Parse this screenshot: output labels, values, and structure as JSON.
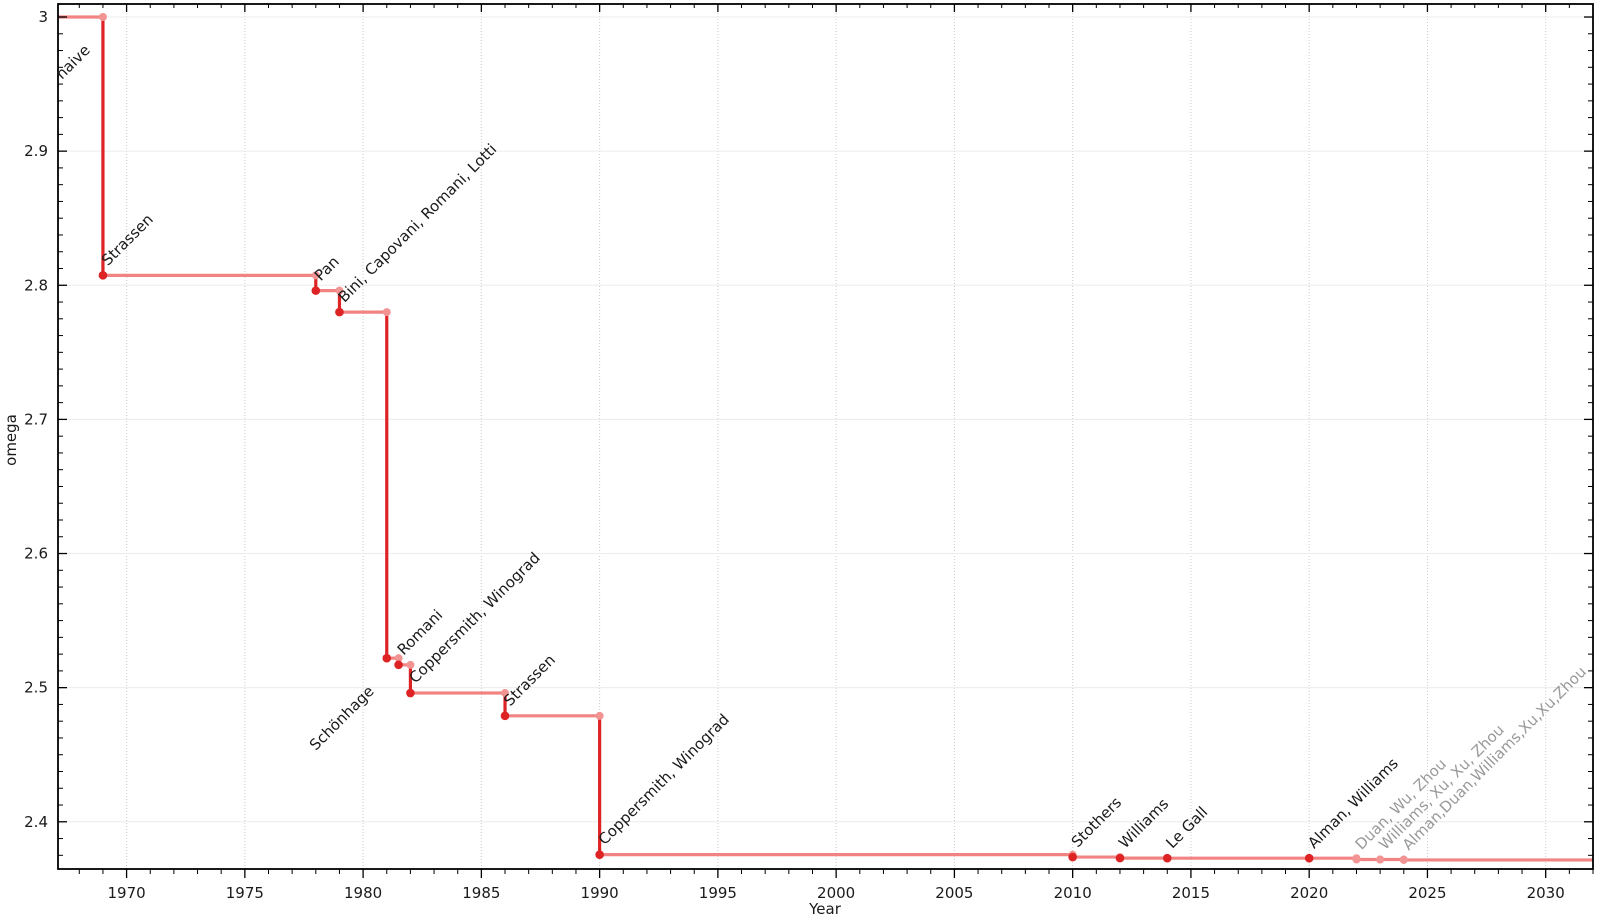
{
  "chart_data": {
    "type": "line",
    "subtype": "step-post",
    "title": "",
    "xlabel": "Year",
    "ylabel": "omega",
    "xlim": [
      1967.1,
      2032.0
    ],
    "ylim": [
      2.3648,
      3.0097
    ],
    "x_major_ticks": [
      1970,
      1975,
      1980,
      1985,
      1990,
      1995,
      2000,
      2005,
      2010,
      2015,
      2020,
      2025,
      2030
    ],
    "x_tick_labels": [
      "1970",
      "1975",
      "1980",
      "1985",
      "1990",
      "1995",
      "2000",
      "2005",
      "2010",
      "2015",
      "2020",
      "2025",
      "2030"
    ],
    "x_minor_step": 1,
    "y_major_ticks": [
      2.4,
      2.5,
      2.6,
      2.7,
      2.8,
      2.9,
      3.0
    ],
    "y_tick_labels": [
      "2.4",
      "2.5",
      "2.6",
      "2.7",
      "2.8",
      "2.9",
      "3"
    ],
    "y_minor_step": 0.0125,
    "grid": true,
    "legend": "none",
    "initial": {
      "omega": 3.0,
      "label": "naive",
      "label_placement": "below"
    },
    "records": [
      {
        "year": 1969,
        "omega": 2.8074,
        "label": "Strassen"
      },
      {
        "year": 1978,
        "omega": 2.796,
        "label": "Pan"
      },
      {
        "year": 1979,
        "omega": 2.78,
        "label": "Bini, Capovani, Romani, Lotti"
      },
      {
        "year": 1981,
        "omega": 2.522,
        "label": "Schönhage",
        "label_placement": "below"
      },
      {
        "year": 1981.5,
        "omega": 2.517,
        "label": "Romani"
      },
      {
        "year": 1982,
        "omega": 2.496,
        "label": "Coppersmith, Winograd"
      },
      {
        "year": 1986,
        "omega": 2.479,
        "label": "Strassen"
      },
      {
        "year": 1990,
        "omega": 2.3755,
        "label": "Coppersmith, Winograd"
      },
      {
        "year": 2010,
        "omega": 2.3737,
        "label": "Stothers"
      },
      {
        "year": 2012,
        "omega": 2.3729,
        "label": "Williams"
      },
      {
        "year": 2014,
        "omega": 2.3728639,
        "label": "Le Gall"
      },
      {
        "year": 2020,
        "omega": 2.3728596,
        "label": "Alman, Williams"
      },
      {
        "year": 2022,
        "omega": 2.37188,
        "label": "Duan, Wu, Zhou",
        "muted": true
      },
      {
        "year": 2023,
        "omega": 2.371866,
        "label": "Williams, Xu, Xu, Zhou",
        "muted": true
      },
      {
        "year": 2024,
        "omega": 2.371552,
        "label": "Alman,Duan,Williams,Xu,Xu,Zhou",
        "muted": true
      }
    ],
    "colors": {
      "strong": "#dd2323",
      "light_line": "#f28383",
      "light_dot": "#f29494",
      "label": "#1a1a1a",
      "label_muted": "#999999",
      "grid_h": "#ececec",
      "grid_v": "#cccccc",
      "axis": "#000000",
      "tick_label": "#1a1a1a"
    }
  }
}
